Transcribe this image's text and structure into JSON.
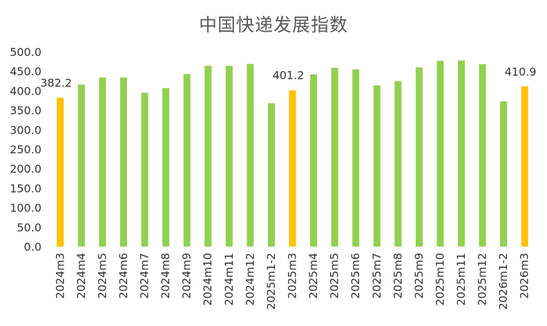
{
  "chart_data": {
    "type": "bar",
    "title": "中国快递发展指数",
    "xlabel": "",
    "ylabel": "",
    "ylim": [
      0,
      500
    ],
    "yticks": [
      "0.0",
      "50.0",
      "100.0",
      "150.0",
      "200.0",
      "250.0",
      "300.0",
      "350.0",
      "400.0",
      "450.0",
      "500.0"
    ],
    "grid": false,
    "legend": "none",
    "categories": [
      "2024m3",
      "2024m4",
      "2024m5",
      "2024m6",
      "2024m7",
      "2024m8",
      "2024m9",
      "2024m10",
      "2024m11",
      "2024m12",
      "2025m1-2",
      "2025m3",
      "2025m4",
      "2025m5",
      "2025m6",
      "2025m7",
      "2025m8",
      "2025m9",
      "2025m10",
      "2025m11",
      "2025m12",
      "2026m1-2",
      "2026m3"
    ],
    "values": [
      382.2,
      416,
      434,
      434,
      395,
      407,
      443,
      464,
      464,
      469,
      368,
      401.2,
      442,
      459,
      455,
      414,
      425,
      460,
      477,
      478,
      468,
      373,
      410.9
    ],
    "highlight_indices": [
      0,
      11,
      22
    ],
    "data_labels": [
      {
        "index": 0,
        "text": "382.2"
      },
      {
        "index": 11,
        "text": "401.2"
      },
      {
        "index": 22,
        "text": "410.9"
      }
    ],
    "colors": {
      "default": "#92D050",
      "highlight": "#FFC000"
    }
  }
}
